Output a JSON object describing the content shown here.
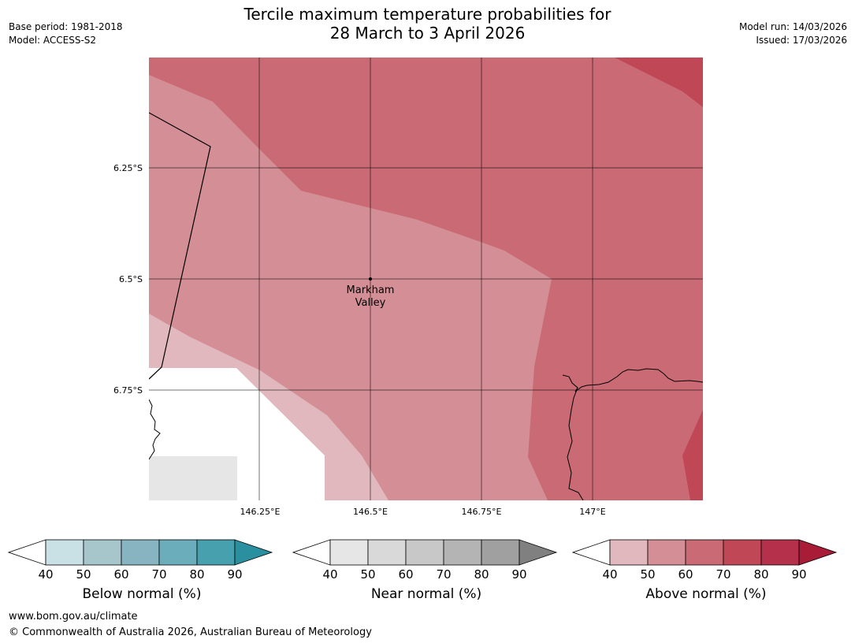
{
  "title": {
    "line1": "Tercile maximum temperature probabilities for",
    "line2": "28 March to 3 April 2026"
  },
  "meta": {
    "base_period": "Base period: 1981-2018",
    "model": "Model: ACCESS-S2",
    "model_run": "Model run: 14/03/2026",
    "issued": "Issued: 17/03/2026"
  },
  "map": {
    "lat_labels": [
      "6.25°S",
      "6.5°S",
      "6.75°S"
    ],
    "lon_labels": [
      "146.25°E",
      "146.5°E",
      "146.75°E",
      "147°E"
    ],
    "location": {
      "name_line1": "Markham",
      "name_line2": "Valley"
    },
    "colors": {
      "above_50": "#e0b8bd",
      "above_60": "#d48f96",
      "above_70": "#c96a74",
      "above_80": "#c04856",
      "no_data": "#e6e6e6",
      "ocean": "#ffffff"
    }
  },
  "legends": [
    {
      "title": "Below normal (%)",
      "ticks": [
        "40",
        "50",
        "60",
        "70",
        "80",
        "90"
      ],
      "colors": [
        "#c9e0e5",
        "#a6c6cc",
        "#88b4c1",
        "#6badba",
        "#47a0ae",
        "#2a8f9e"
      ]
    },
    {
      "title": "Near normal (%)",
      "ticks": [
        "40",
        "50",
        "60",
        "70",
        "80",
        "90"
      ],
      "colors": [
        "#e6e6e6",
        "#d9d9d9",
        "#c8c8c8",
        "#b4b4b4",
        "#a0a0a0",
        "#808080"
      ]
    },
    {
      "title": "Above normal (%)",
      "ticks": [
        "40",
        "50",
        "60",
        "70",
        "80",
        "90"
      ],
      "colors": [
        "#e0b8bd",
        "#d48f96",
        "#c96a74",
        "#c04856",
        "#b5304a",
        "#a81c38"
      ]
    }
  ],
  "footer": {
    "url": "www.bom.gov.au/climate",
    "copyright": "© Commonwealth of Australia 2026, Australian Bureau of Meteorology"
  }
}
